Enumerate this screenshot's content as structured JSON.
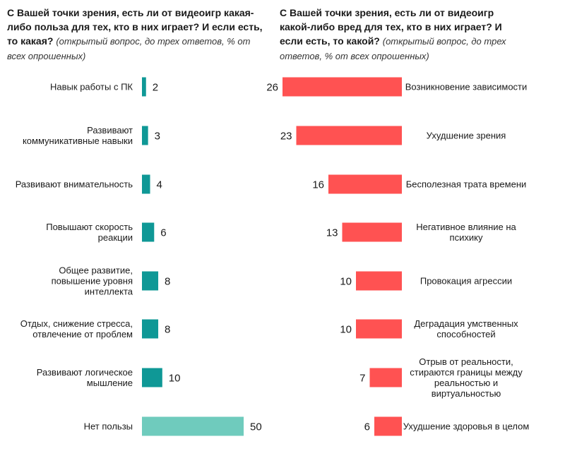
{
  "chart_data": [
    {
      "type": "bar",
      "orientation": "horizontal",
      "title_bold": "С Вашей точки зрения, есть ли от видеоигр какая-либо польза для тех, кто в них играет? И если есть, то какая?",
      "title_note": "(открытый вопрос, до трех ответов, % от всех опрошенных)",
      "categories": [
        [
          "Навык работы с ПК"
        ],
        [
          "Развивают",
          "коммуникативные навыки"
        ],
        [
          "Развивают внимательность"
        ],
        [
          "Повышают скорость",
          "реакции"
        ],
        [
          "Общее развитие,",
          "повышение уровня",
          "интеллекта"
        ],
        [
          "Отдых, снижение стресса,",
          "отвлечение от проблем"
        ],
        [
          "Развивают логическое",
          "мышление"
        ],
        [
          "Нет пользы"
        ]
      ],
      "values": [
        2,
        3,
        4,
        6,
        8,
        8,
        10,
        50
      ],
      "colors": [
        "#0f9896",
        "#0f9896",
        "#0f9896",
        "#0f9896",
        "#0f9896",
        "#0f9896",
        "#0f9896",
        "#6fcbbd"
      ],
      "xlim": [
        0,
        50
      ]
    },
    {
      "type": "bar",
      "orientation": "horizontal",
      "title_bold": "С Вашей точки зрения, есть ли от видеоигр какой-либо вред для тех, кто в них играет? И если есть, то какой?",
      "title_note": "(открытый вопрос, до трех ответов, % от всех опрошенных)",
      "categories": [
        [
          "Возникновение зависимости"
        ],
        [
          "Ухудшение зрения"
        ],
        [
          "Бесполезная трата времени"
        ],
        [
          "Негативное влияние на",
          "психику"
        ],
        [
          "Провокация агрессии"
        ],
        [
          "Деградация умственных",
          "способностей"
        ],
        [
          "Отрыв от реальности,",
          "стираются границы между",
          "реальностью и",
          "виртуальностью"
        ],
        [
          "Ухудшение здоровья в целом"
        ]
      ],
      "values": [
        26,
        23,
        16,
        13,
        10,
        10,
        7,
        6
      ],
      "colors": [
        "#ff5252",
        "#ff5252",
        "#ff5252",
        "#ff5252",
        "#ff5252",
        "#ff5252",
        "#ff5252",
        "#ff5252"
      ],
      "xlim": [
        0,
        26
      ]
    }
  ]
}
